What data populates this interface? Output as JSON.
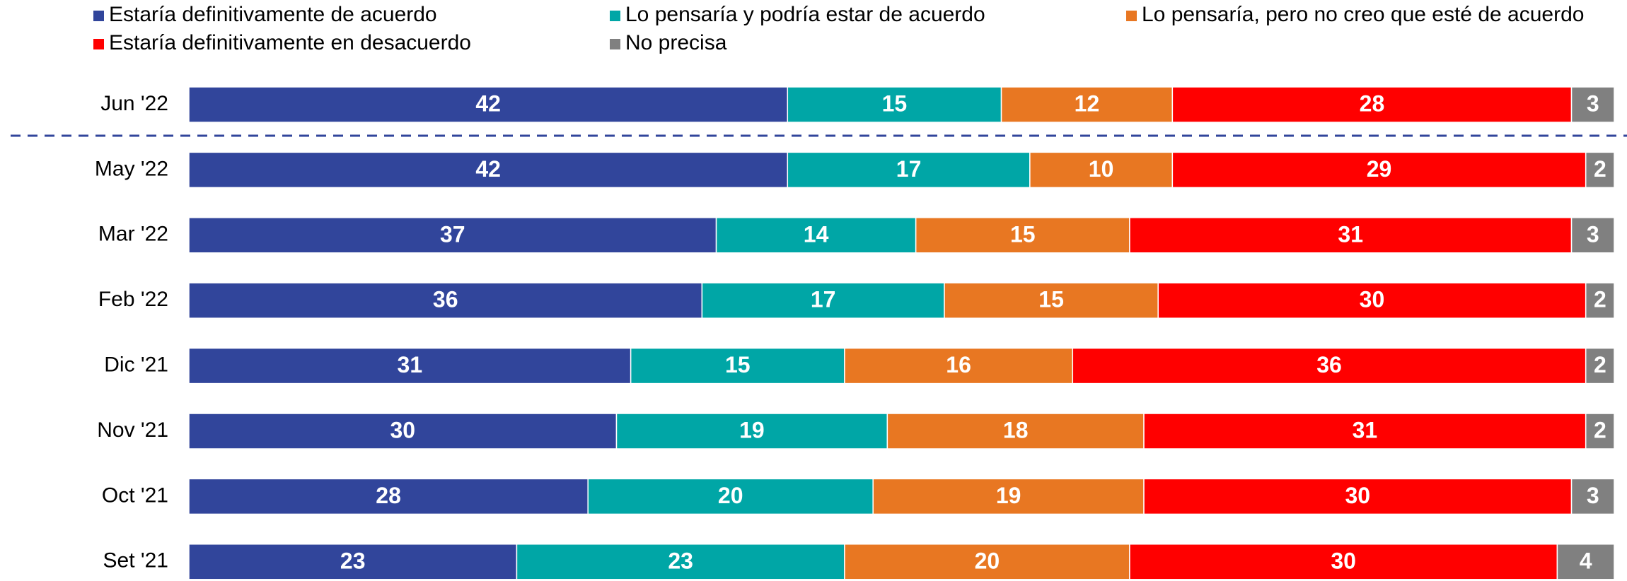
{
  "chart_data": {
    "type": "stacked-bar-horizontal",
    "categories": [
      "Jun '22",
      "May '22",
      "Mar '22",
      "Feb '22",
      "Dic '21",
      "Nov '21",
      "Oct '21",
      "Set '21"
    ],
    "series": [
      {
        "name": "Estaría definitivamente de acuerdo",
        "color": "#31459b",
        "values": [
          42,
          42,
          37,
          36,
          31,
          30,
          28,
          23
        ]
      },
      {
        "name": "Lo pensaría y podría estar de acuerdo",
        "color": "#00a6a6",
        "values": [
          15,
          17,
          14,
          17,
          15,
          19,
          20,
          23
        ]
      },
      {
        "name": "Lo pensaría, pero no creo que esté de acuerdo",
        "color": "#e87722",
        "values": [
          12,
          10,
          15,
          15,
          16,
          18,
          19,
          20
        ]
      },
      {
        "name": "Estaría definitivamente en desacuerdo",
        "color": "#ff0000",
        "values": [
          28,
          29,
          31,
          30,
          36,
          31,
          30,
          30
        ]
      },
      {
        "name": "No precisa",
        "color": "#808080",
        "values": [
          3,
          2,
          3,
          2,
          2,
          2,
          3,
          4
        ]
      }
    ]
  }
}
